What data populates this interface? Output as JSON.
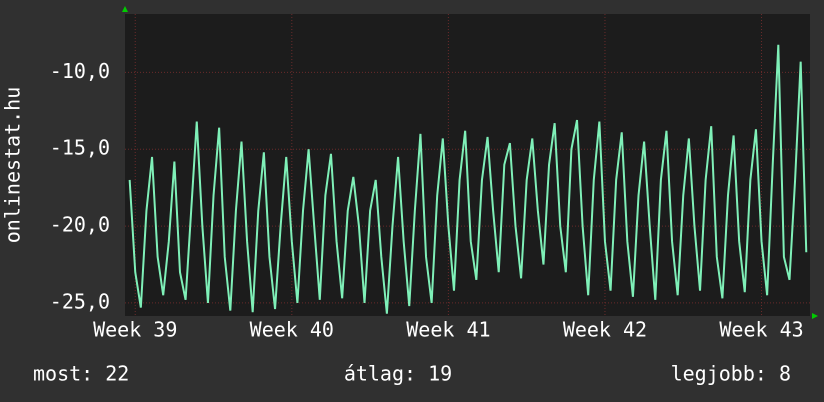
{
  "chart_data": {
    "type": "line",
    "y_label": "onlinestat.hu",
    "x": [
      -6,
      0,
      6,
      12,
      18,
      24,
      30,
      36,
      42,
      48,
      54,
      60,
      66,
      72,
      78,
      84,
      90,
      96,
      102,
      108,
      114,
      120,
      126,
      132,
      138,
      144,
      150,
      156,
      162,
      168,
      174,
      180,
      186,
      192,
      198,
      204,
      210,
      216,
      222,
      228,
      234,
      240,
      246,
      252,
      258,
      264,
      270,
      276,
      282,
      288,
      294,
      300,
      306,
      312,
      318,
      324,
      330,
      336,
      342,
      348,
      354,
      360,
      366,
      372,
      378,
      384,
      390,
      396,
      402,
      408,
      414,
      420,
      426,
      432,
      438,
      444,
      450,
      456,
      462,
      468,
      474,
      480,
      486,
      492,
      498,
      504,
      510,
      516,
      522,
      528,
      534,
      540,
      546,
      552,
      558,
      564,
      570,
      576,
      582,
      588,
      594,
      600,
      606,
      612,
      618,
      624,
      630,
      636,
      642,
      648,
      654,
      660,
      666,
      672,
      678,
      684,
      690,
      696,
      702,
      708,
      714,
      720
    ],
    "series": [
      {
        "name": "onlinestat.hu",
        "color": "#7ff0b8",
        "values": [
          -17,
          -23,
          -25.3,
          -19,
          -15.5,
          -22,
          -24.5,
          -21,
          -15.8,
          -23,
          -24.8,
          -19,
          -13.2,
          -20,
          -25,
          -18,
          -13.6,
          -22,
          -25.5,
          -19,
          -14.5,
          -21,
          -25.6,
          -19,
          -15.2,
          -22,
          -25.4,
          -20,
          -15.5,
          -21,
          -25,
          -19,
          -15,
          -20,
          -24.8,
          -18,
          -15.3,
          -21,
          -24.7,
          -19,
          -16.8,
          -20,
          -25,
          -19,
          -17,
          -22,
          -25.7,
          -20,
          -15.5,
          -21,
          -25.2,
          -19,
          -14,
          -22,
          -25,
          -18,
          -14.3,
          -20,
          -24.2,
          -17,
          -13.8,
          -21,
          -23.5,
          -17,
          -14.2,
          -19,
          -23,
          -16,
          -14.6,
          -20,
          -23.4,
          -17,
          -14.3,
          -19,
          -22.5,
          -16,
          -13.3,
          -20,
          -23,
          -15,
          -13.1,
          -20,
          -24.5,
          -17,
          -13.2,
          -21,
          -24.2,
          -17,
          -13.9,
          -21,
          -24.6,
          -18,
          -14.5,
          -20,
          -24.8,
          -17,
          -13.8,
          -21,
          -24.5,
          -18,
          -14.3,
          -20,
          -24.2,
          -17,
          -13.5,
          -22,
          -24.7,
          -18,
          -14.1,
          -21,
          -24.3,
          -17,
          -13.7,
          -21,
          -24.5,
          -16,
          -8.2,
          -22,
          -23.5,
          -17,
          -9.3,
          -21.7
        ]
      }
    ],
    "xlim": [
      -11,
      724
    ],
    "xticks": [
      {
        "value": 0,
        "label": "Week 39"
      },
      {
        "value": 168,
        "label": "Week 40"
      },
      {
        "value": 336,
        "label": "Week 41"
      },
      {
        "value": 504,
        "label": "Week 42"
      },
      {
        "value": 672,
        "label": "Week 43"
      }
    ],
    "ylim": [
      -25.85,
      -6.2
    ],
    "yticks": [
      {
        "value": -25,
        "label": "-25,0"
      },
      {
        "value": -20,
        "label": "-20,0"
      },
      {
        "value": -15,
        "label": "-15,0"
      },
      {
        "value": -10,
        "label": "-10,0"
      }
    ],
    "grid": true,
    "stats": [
      "most: 22",
      "átlag: 19",
      "legjobb: 8"
    ]
  }
}
